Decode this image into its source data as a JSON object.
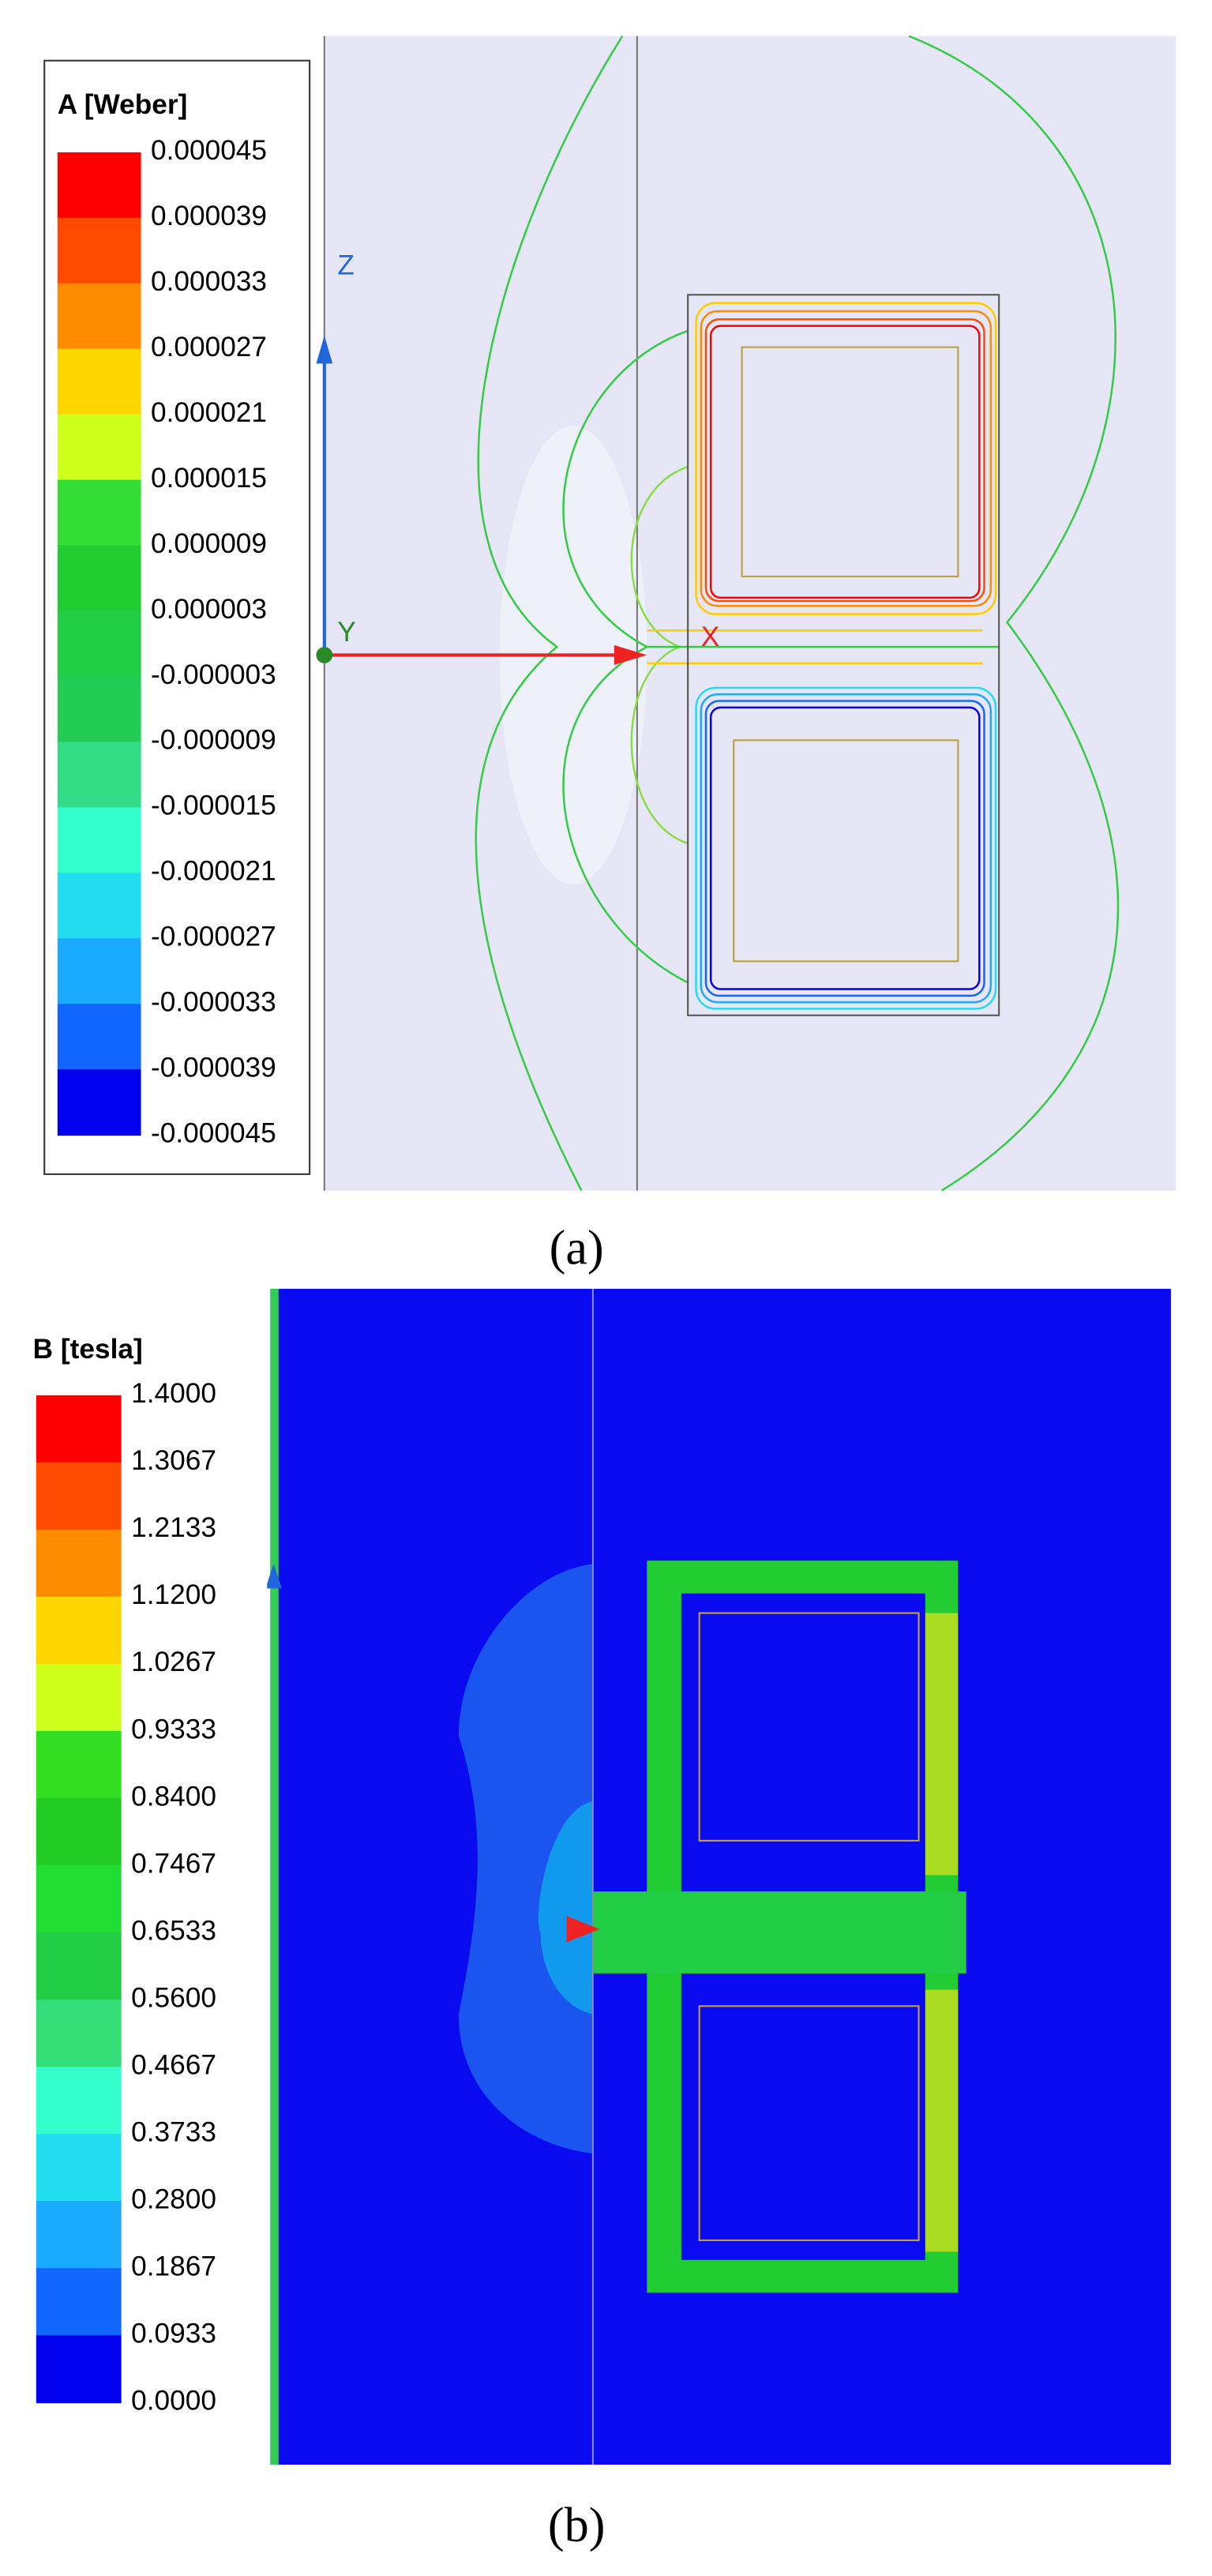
{
  "panel_a": {
    "legend": {
      "title": "A [Weber]",
      "labels": [
        "0.000045",
        "0.000039",
        "0.000033",
        "0.000027",
        "0.000021",
        "0.000015",
        "0.000009",
        "0.000003",
        "-0.000003",
        "-0.000009",
        "-0.000015",
        "-0.000021",
        "-0.000027",
        "-0.000033",
        "-0.000039",
        "-0.000045"
      ],
      "colors": [
        "#ff0000",
        "#ff4a00",
        "#ff8c00",
        "#ffd500",
        "#ccff1a",
        "#33dd33",
        "#22cc33",
        "#22cc44",
        "#22cc55",
        "#33dd88",
        "#33ffcc",
        "#22ddee",
        "#1aaaff",
        "#1166ff",
        "#0000ee"
      ]
    },
    "axes": {
      "z": "Z",
      "y": "Y",
      "x": "X"
    },
    "caption": "(a)"
  },
  "panel_b": {
    "legend": {
      "title": "B [tesla]",
      "labels": [
        "1.4000",
        "1.3067",
        "1.2133",
        "1.1200",
        "1.0267",
        "0.9333",
        "0.8400",
        "0.7467",
        "0.6533",
        "0.5600",
        "0.4667",
        "0.3733",
        "0.2800",
        "0.1867",
        "0.0933",
        "0.0000"
      ],
      "colors": [
        "#ff0000",
        "#ff4a00",
        "#ff8c00",
        "#ffd500",
        "#ccff1a",
        "#33dd22",
        "#22cc22",
        "#22dd33",
        "#22cc44",
        "#33dd77",
        "#33ffcc",
        "#22ddee",
        "#1aaaff",
        "#1166ff",
        "#0000ee"
      ]
    },
    "caption": "(b)"
  }
}
